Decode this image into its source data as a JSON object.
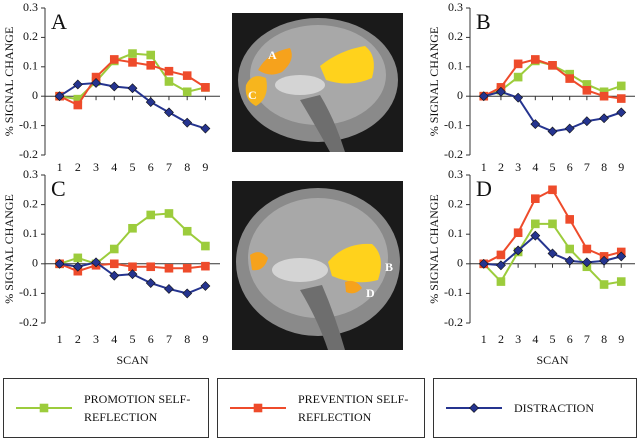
{
  "chart_data": [
    {
      "type": "line",
      "label": "A",
      "ylabel": "% SIGNAL CHANGE",
      "x": [
        1,
        2,
        3,
        4,
        5,
        6,
        7,
        8,
        9
      ],
      "xlim": [
        0.2,
        9.8
      ],
      "xticks": [
        1,
        2,
        3,
        4,
        5,
        6,
        7,
        8,
        9
      ],
      "ylim": [
        -0.2,
        0.3
      ],
      "yticks": [
        -0.2,
        -0.1,
        0,
        0.1,
        0.2,
        0.3
      ],
      "series": [
        {
          "name": "PROMOTION SELF-REFLECTION",
          "color": "#9ccc3c",
          "marker": "square",
          "values": [
            0,
            -0.01,
            0.05,
            0.12,
            0.145,
            0.14,
            0.05,
            0.015,
            0.03
          ]
        },
        {
          "name": "PREVENTION SELF-REFLECTION",
          "color": "#ee4b2b",
          "marker": "square",
          "values": [
            0,
            -0.03,
            0.065,
            0.125,
            0.115,
            0.105,
            0.085,
            0.07,
            0.03
          ]
        },
        {
          "name": "DISTRACTION",
          "color": "#25348f",
          "marker": "diamond",
          "values": [
            0,
            0.04,
            0.045,
            0.033,
            0.027,
            -0.02,
            -0.055,
            -0.09,
            -0.11
          ]
        }
      ]
    },
    {
      "type": "line",
      "label": "B",
      "ylabel": "% SIGNAL CHANGE",
      "x": [
        1,
        2,
        3,
        4,
        5,
        6,
        7,
        8,
        9
      ],
      "xlim": [
        0.2,
        9.8
      ],
      "xticks": [
        1,
        2,
        3,
        4,
        5,
        6,
        7,
        8,
        9
      ],
      "ylim": [
        -0.2,
        0.3
      ],
      "yticks": [
        -0.2,
        -0.1,
        0,
        0.1,
        0.2,
        0.3
      ],
      "series": [
        {
          "color": "#9ccc3c",
          "marker": "square",
          "values": [
            0,
            0.02,
            0.065,
            0.12,
            0.105,
            0.075,
            0.04,
            0.015,
            0.035
          ]
        },
        {
          "color": "#ee4b2b",
          "marker": "square",
          "values": [
            0,
            0.03,
            0.11,
            0.125,
            0.105,
            0.06,
            0.02,
            0,
            -0.008
          ]
        },
        {
          "color": "#25348f",
          "marker": "diamond",
          "values": [
            0,
            0.015,
            -0.005,
            -0.095,
            -0.12,
            -0.11,
            -0.085,
            -0.075,
            -0.055
          ]
        }
      ]
    },
    {
      "type": "line",
      "label": "C",
      "ylabel": "% SIGNAL CHANGE",
      "xlabel": "SCAN",
      "x": [
        1,
        2,
        3,
        4,
        5,
        6,
        7,
        8,
        9
      ],
      "xlim": [
        0.2,
        9.8
      ],
      "xticks": [
        1,
        2,
        3,
        4,
        5,
        6,
        7,
        8,
        9
      ],
      "ylim": [
        -0.2,
        0.3
      ],
      "yticks": [
        -0.2,
        -0.1,
        0,
        0.1,
        0.2,
        0.3
      ],
      "series": [
        {
          "color": "#9ccc3c",
          "marker": "square",
          "values": [
            0,
            0.02,
            0,
            0.05,
            0.12,
            0.165,
            0.17,
            0.11,
            0.06
          ]
        },
        {
          "color": "#ee4b2b",
          "marker": "square",
          "values": [
            0,
            -0.025,
            -0.005,
            0,
            -0.01,
            -0.01,
            -0.015,
            -0.015,
            -0.008
          ]
        },
        {
          "color": "#25348f",
          "marker": "diamond",
          "values": [
            0,
            -0.01,
            0.005,
            -0.04,
            -0.035,
            -0.065,
            -0.085,
            -0.1,
            -0.075
          ]
        }
      ]
    },
    {
      "type": "line",
      "label": "D",
      "ylabel": "% SIGNAL CHANGE",
      "xlabel": "SCAN",
      "x": [
        1,
        2,
        3,
        4,
        5,
        6,
        7,
        8,
        9
      ],
      "xlim": [
        0.2,
        9.8
      ],
      "xticks": [
        1,
        2,
        3,
        4,
        5,
        6,
        7,
        8,
        9
      ],
      "ylim": [
        -0.2,
        0.3
      ],
      "yticks": [
        -0.2,
        -0.1,
        0,
        0.1,
        0.2,
        0.3
      ],
      "series": [
        {
          "color": "#9ccc3c",
          "marker": "square",
          "values": [
            0,
            -0.06,
            0.04,
            0.135,
            0.135,
            0.05,
            -0.01,
            -0.07,
            -0.06
          ]
        },
        {
          "color": "#ee4b2b",
          "marker": "square",
          "values": [
            0,
            0.03,
            0.105,
            0.22,
            0.25,
            0.15,
            0.05,
            0.025,
            0.04
          ]
        },
        {
          "color": "#25348f",
          "marker": "diamond",
          "values": [
            0,
            -0.005,
            0.045,
            0.095,
            0.035,
            0.01,
            0.005,
            0.01,
            0.025
          ]
        }
      ]
    }
  ],
  "images": [
    {
      "labels": [
        "A",
        "C"
      ]
    },
    {
      "labels": [
        "B",
        "D"
      ]
    }
  ]
}
